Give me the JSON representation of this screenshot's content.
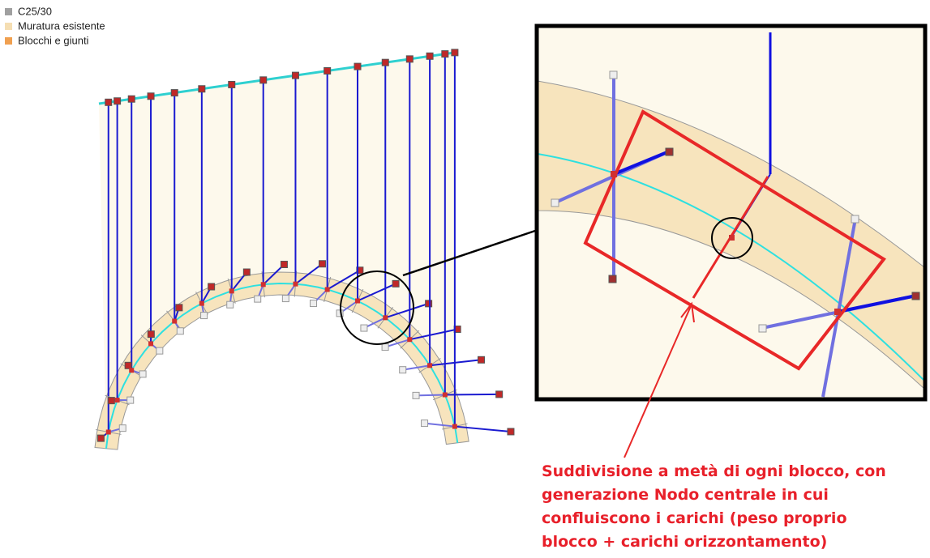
{
  "legend": [
    {
      "label": "C25/30",
      "color": "#a0a0a0"
    },
    {
      "label": "Muratura esistente",
      "color": "#f5deb3"
    },
    {
      "label": "Blocchi e giunti",
      "color": "#f0a050"
    }
  ],
  "annotation": [
    "Suddivisione a metà di ogni blocco, con",
    "generazione Nodo centrale in cui",
    "confluiscono i carichi (peso proprio",
    "blocco + carichi orizzontamento)"
  ]
}
